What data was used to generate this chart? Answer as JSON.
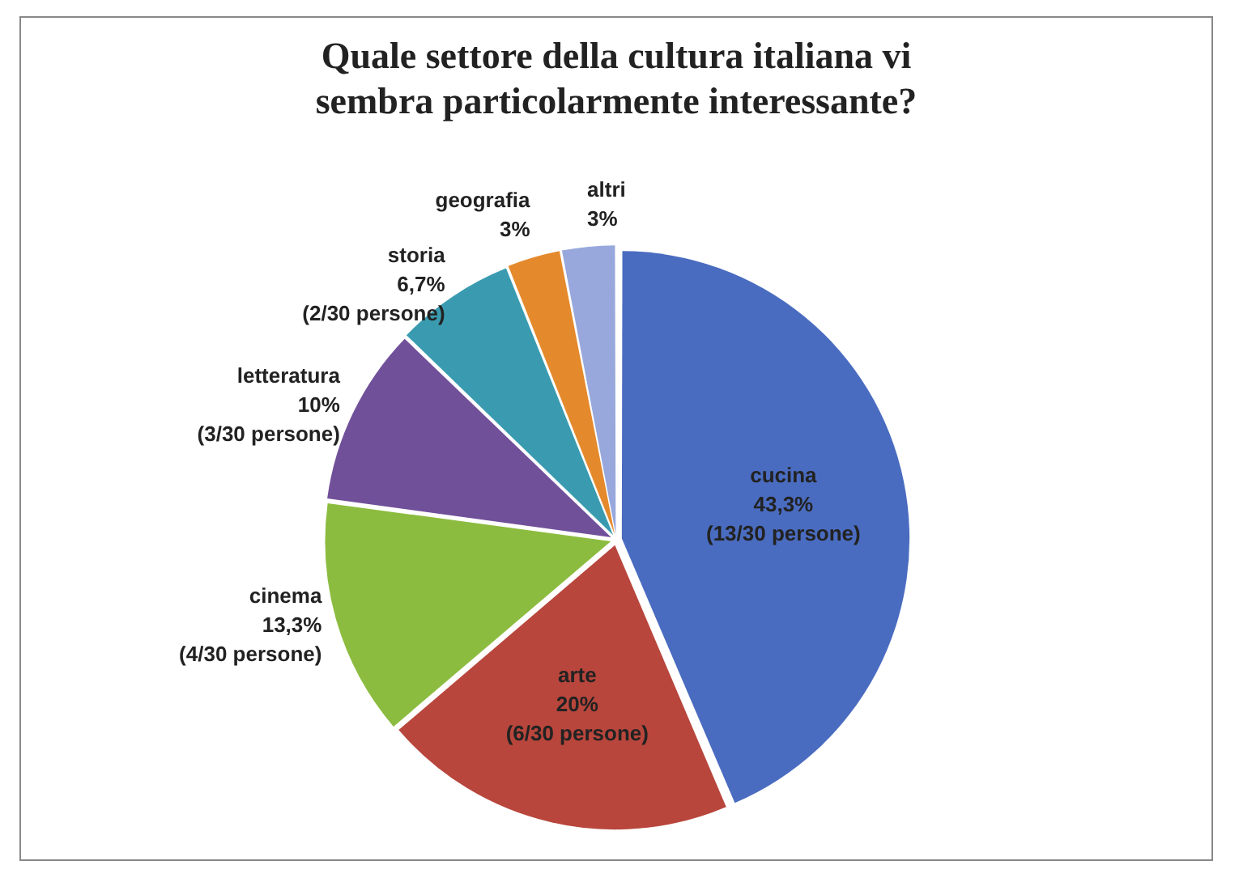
{
  "chart_data": {
    "type": "pie",
    "title": "Quale settore della cultura italiana vi sembra particolarmente interessante?",
    "categories": [
      "cucina",
      "arte",
      "cinema",
      "letteratura",
      "storia",
      "geografia",
      "altri"
    ],
    "values": [
      43.3,
      20,
      13.3,
      10,
      6.7,
      3,
      3
    ],
    "colors": [
      "#4a6cc0",
      "#b8463c",
      "#8cbc3f",
      "#71509a",
      "#3a9bb0",
      "#e58a2c",
      "#98a8dc"
    ],
    "value_labels": [
      "43,3%",
      "20%",
      "13,3%",
      "10%",
      "6,7%",
      "3%",
      "3%"
    ],
    "annotations": [
      {
        "text": "(13/30 persone)",
        "x": "cucina"
      },
      {
        "text": "(6/30 persone)",
        "x": "arte"
      },
      {
        "text": "(4/30 persone)",
        "x": "cinema"
      },
      {
        "text": "(3/30 persone)",
        "x": "letteratura"
      },
      {
        "text": "(2/30 persone)",
        "x": "storia"
      }
    ],
    "legend": false
  }
}
